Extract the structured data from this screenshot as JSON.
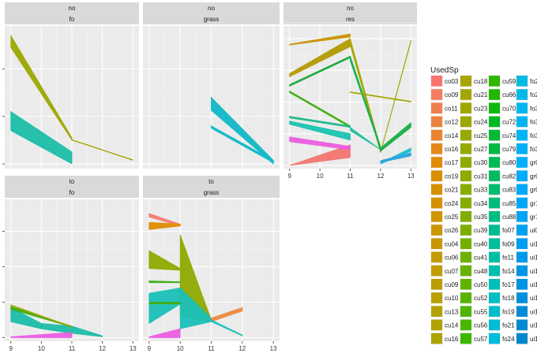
{
  "chart_data": {
    "type": "area",
    "facet_rows_label": [
      "no",
      "to"
    ],
    "facets": [
      {
        "top": "no",
        "bottom": "fo",
        "series": [
          {
            "name": "cu16",
            "color": "#9CA800",
            "x": [
              9,
              11
            ],
            "low": [
              4.9,
              1.0
            ],
            "high": [
              5.4,
              1.1
            ]
          },
          {
            "name": "cu40",
            "color": "#A3A500",
            "x": [
              11,
              13
            ],
            "low": [
              1.0,
              0.15
            ],
            "high": [
              1.02,
              0.17
            ]
          },
          {
            "name": "fo11",
            "color": "#1BBEA8",
            "x": [
              9,
              11
            ],
            "low": [
              1.4,
              0.0
            ],
            "high": [
              2.2,
              0.5
            ]
          }
        ]
      },
      {
        "top": "no",
        "bottom": "grass",
        "series": [
          {
            "name": "gr01",
            "color": "#12B8C8",
            "x": [
              11,
              13
            ],
            "low": [
              2.25,
              0.0
            ],
            "high": [
              2.8,
              0.15
            ]
          },
          {
            "name": "gr03",
            "color": "#12B8C8",
            "x": [
              11,
              13
            ],
            "low": [
              1.5,
              0.05
            ],
            "high": [
              1.6,
              0.15
            ]
          }
        ]
      },
      {
        "top": "no",
        "bottom": "res",
        "series": [
          {
            "name": "co03",
            "color": "#F2766F",
            "x": [
              9,
              11
            ],
            "low": [
              0.0,
              0.5
            ],
            "high": [
              0.0,
              1.3
            ]
          },
          {
            "name": "cu18",
            "color": "#C79400",
            "x": [
              9,
              11
            ],
            "low": [
              7.6,
              8.1
            ],
            "high": [
              7.65,
              8.3
            ]
          },
          {
            "name": "cu33",
            "color": "#B39A00",
            "x": [
              9,
              11
            ],
            "low": [
              5.6,
              7.5
            ],
            "high": [
              5.8,
              8.0
            ]
          },
          {
            "name": "cu35",
            "color": "#A3A500",
            "x": [
              11,
              12
            ],
            "low": [
              7.6,
              0.8
            ],
            "high": [
              8.0,
              1.1
            ]
          },
          {
            "name": "cu35",
            "color": "#A3A500",
            "x": [
              12,
              13
            ],
            "low": [
              0.8,
              7.8
            ],
            "high": [
              0.85,
              7.9
            ]
          },
          {
            "name": "cu59",
            "color": "#3EAE11",
            "x": [
              9,
              11
            ],
            "low": [
              4.6,
              2.4
            ],
            "high": [
              4.7,
              2.5
            ]
          },
          {
            "name": "cu66",
            "color": "#18A93A",
            "x": [
              9,
              11
            ],
            "low": [
              5.0,
              6.8
            ],
            "high": [
              5.1,
              6.9
            ]
          },
          {
            "name": "cu70",
            "color": "#0DB04F",
            "x": [
              11,
              12
            ],
            "low": [
              6.6,
              1.0
            ],
            "high": [
              6.9,
              1.2
            ]
          },
          {
            "name": "cu74",
            "color": "#18AE44",
            "x": [
              12,
              13
            ],
            "low": [
              0.9,
              2.4
            ],
            "high": [
              1.1,
              2.7
            ]
          },
          {
            "name": "cu80",
            "color": "#1FB88C",
            "x": [
              9,
              11
            ],
            "low": [
              3.0,
              2.4
            ],
            "high": [
              3.1,
              2.5
            ]
          },
          {
            "name": "fo07",
            "color": "#1AC4B0",
            "x": [
              9,
              11
            ],
            "low": [
              2.6,
              1.6
            ],
            "high": [
              2.8,
              2.0
            ]
          },
          {
            "name": "fo14",
            "color": "#1FC1A0",
            "x": [
              11,
              12
            ],
            "low": [
              2.2,
              1.0
            ],
            "high": [
              2.4,
              1.0
            ]
          },
          {
            "name": "gr01",
            "color": "#18BFCB",
            "x": [
              12,
              13
            ],
            "low": [
              0.1,
              0.9
            ],
            "high": [
              0.15,
              1.1
            ]
          },
          {
            "name": "ui04",
            "color": "#2CA2E0",
            "x": [
              12,
              13
            ],
            "low": [
              0.2,
              0.6
            ],
            "high": [
              0.3,
              0.8
            ]
          },
          {
            "name": "ui10",
            "color": "#EB5EE0",
            "x": [
              9,
              11
            ],
            "low": [
              1.5,
              1.0
            ],
            "high": [
              1.8,
              1.2
            ]
          },
          {
            "name": "cu41",
            "color": "#A3A500",
            "x": [
              11,
              13
            ],
            "low": [
              4.6,
              4.0
            ],
            "high": [
              4.65,
              4.05
            ]
          }
        ]
      },
      {
        "top": "to",
        "bottom": "fo",
        "series": [
          {
            "name": "fo11",
            "color": "#1BBEA8",
            "x": [
              9,
              10
            ],
            "low": [
              0.9,
              0.5
            ],
            "high": [
              1.7,
              0.8
            ]
          },
          {
            "name": "fo11",
            "color": "#1BBEA8",
            "x": [
              10,
              11
            ],
            "low": [
              0.5,
              0.25
            ],
            "high": [
              0.8,
              0.65
            ]
          },
          {
            "name": "fo11",
            "color": "#1BBEA8",
            "x": [
              11,
              12
            ],
            "low": [
              0.25,
              0.05
            ],
            "high": [
              0.65,
              0.1
            ]
          },
          {
            "name": "cu59",
            "color": "#3EAE11",
            "x": [
              9,
              11
            ],
            "low": [
              1.6,
              0.6
            ],
            "high": [
              1.75,
              0.65
            ]
          },
          {
            "name": "ui10",
            "color": "#EB5EE0",
            "x": [
              9,
              11
            ],
            "low": [
              0.0,
              0.0
            ],
            "high": [
              0.05,
              0.3
            ]
          },
          {
            "name": "cu48",
            "color": "#A3A500",
            "x": [
              9,
              11
            ],
            "low": [
              1.8,
              0.6
            ],
            "high": [
              1.85,
              0.62
            ]
          }
        ]
      },
      {
        "top": "to",
        "bottom": "grass",
        "series": [
          {
            "name": "co14",
            "color": "#F0806E",
            "x": [
              9,
              10
            ],
            "low": [
              6.8,
              6.3
            ],
            "high": [
              7.0,
              6.4
            ]
          },
          {
            "name": "co24",
            "color": "#E08B00",
            "x": [
              9,
              10
            ],
            "low": [
              6.1,
              6.3
            ],
            "high": [
              6.5,
              6.4
            ]
          },
          {
            "name": "cu50",
            "color": "#8FAA00",
            "x": [
              9,
              10
            ],
            "low": [
              3.9,
              3.8
            ],
            "high": [
              4.9,
              3.9
            ]
          },
          {
            "name": "cu52",
            "color": "#8FAA00",
            "x": [
              10,
              11
            ],
            "low": [
              1.2,
              0.9
            ],
            "high": [
              5.8,
              1.0
            ]
          },
          {
            "name": "cu55",
            "color": "#3EAE11",
            "x": [
              9,
              10
            ],
            "low": [
              3.1,
              3.1
            ],
            "high": [
              3.2,
              3.15
            ]
          },
          {
            "name": "fo21",
            "color": "#1AC0B8",
            "x": [
              9,
              10
            ],
            "low": [
              0.8,
              1.9
            ],
            "high": [
              2.5,
              2.8
            ]
          },
          {
            "name": "fo24",
            "color": "#1AC0B8",
            "x": [
              10,
              11
            ],
            "low": [
              0.5,
              0.9
            ],
            "high": [
              2.8,
              1.1
            ]
          },
          {
            "name": "cu56",
            "color": "#3EAE11",
            "x": [
              9,
              10
            ],
            "low": [
              1.9,
              1.9
            ],
            "high": [
              2.0,
              2.0
            ]
          },
          {
            "name": "co25",
            "color": "#EE8A40",
            "x": [
              11,
              12
            ],
            "low": [
              0.9,
              1.5
            ],
            "high": [
              1.1,
              1.7
            ]
          },
          {
            "name": "ui10",
            "color": "#EB5EE0",
            "x": [
              9,
              10
            ],
            "low": [
              0.0,
              0.0
            ],
            "high": [
              0.05,
              0.5
            ]
          },
          {
            "name": "fo17",
            "color": "#1AC0B8",
            "x": [
              11,
              12
            ],
            "low": [
              0.9,
              0.1
            ],
            "high": [
              1.0,
              0.15
            ]
          }
        ]
      }
    ],
    "x_ticks": [
      9,
      10,
      11,
      12,
      13
    ],
    "xlim": [
      8.8,
      13.2
    ],
    "ylim_row1": [
      -0.2,
      5.8
    ],
    "ylim_row1_res": [
      -0.2,
      8.8
    ],
    "ylim_row2": [
      -0.2,
      7.8
    ],
    "legend": {
      "title": "UsedSp",
      "position": "right",
      "columns": [
        [
          {
            "label": "co03",
            "color": "#F8766D"
          },
          {
            "label": "co09",
            "color": "#F47B5E"
          },
          {
            "label": "co11",
            "color": "#F07E50"
          },
          {
            "label": "co12",
            "color": "#EC8240"
          },
          {
            "label": "co14",
            "color": "#E8852E"
          },
          {
            "label": "co16",
            "color": "#E4881A"
          },
          {
            "label": "co17",
            "color": "#E08B00"
          },
          {
            "label": "co19",
            "color": "#DC8E00"
          },
          {
            "label": "co21",
            "color": "#D89000"
          },
          {
            "label": "co24",
            "color": "#D49200"
          },
          {
            "label": "co25",
            "color": "#D09400"
          },
          {
            "label": "co26",
            "color": "#CC9600"
          },
          {
            "label": "cu04",
            "color": "#C89800"
          },
          {
            "label": "cu06",
            "color": "#C49A00"
          },
          {
            "label": "cu07",
            "color": "#C09C00"
          },
          {
            "label": "cu09",
            "color": "#BC9D00"
          },
          {
            "label": "cu10",
            "color": "#B89F00"
          },
          {
            "label": "cu13",
            "color": "#B4A000"
          },
          {
            "label": "cu14",
            "color": "#B0A200"
          },
          {
            "label": "cu16",
            "color": "#ACA300"
          }
        ],
        [
          {
            "label": "cu18",
            "color": "#A8A400"
          },
          {
            "label": "cu21",
            "color": "#A4A500"
          },
          {
            "label": "cu23",
            "color": "#A0A600"
          },
          {
            "label": "cu24",
            "color": "#9CA700"
          },
          {
            "label": "cu25",
            "color": "#98A800"
          },
          {
            "label": "cu27",
            "color": "#94A900"
          },
          {
            "label": "cu30",
            "color": "#90AA00"
          },
          {
            "label": "cu31",
            "color": "#8CAB00"
          },
          {
            "label": "cu33",
            "color": "#88AC00"
          },
          {
            "label": "cu34",
            "color": "#84AD00"
          },
          {
            "label": "cu35",
            "color": "#7FAE00"
          },
          {
            "label": "cu39",
            "color": "#7AAF00"
          },
          {
            "label": "cu40",
            "color": "#74B000"
          },
          {
            "label": "cu41",
            "color": "#6EB100"
          },
          {
            "label": "cu48",
            "color": "#67B200"
          },
          {
            "label": "cu50",
            "color": "#60B300"
          },
          {
            "label": "cu52",
            "color": "#58B400"
          },
          {
            "label": "cu55",
            "color": "#50B500"
          },
          {
            "label": "cu56",
            "color": "#46B600"
          },
          {
            "label": "cu57",
            "color": "#3BB700"
          }
        ],
        [
          {
            "label": "cu59",
            "color": "#2FB700"
          },
          {
            "label": "cu66",
            "color": "#20B800"
          },
          {
            "label": "cu70",
            "color": "#0BB90A"
          },
          {
            "label": "cu72",
            "color": "#00B922"
          },
          {
            "label": "cu74",
            "color": "#00BA34"
          },
          {
            "label": "cu79",
            "color": "#00BA44"
          },
          {
            "label": "cu80",
            "color": "#00BB53"
          },
          {
            "label": "cu82",
            "color": "#00BB61"
          },
          {
            "label": "cu83",
            "color": "#00BC6E"
          },
          {
            "label": "cu85",
            "color": "#00BC7A"
          },
          {
            "label": "cu88",
            "color": "#00BD86"
          },
          {
            "label": "fo07",
            "color": "#00BD91"
          },
          {
            "label": "fo09",
            "color": "#00BE9C"
          },
          {
            "label": "fo11",
            "color": "#00BEA6"
          },
          {
            "label": "fo14",
            "color": "#00BEB0"
          },
          {
            "label": "fo17",
            "color": "#00BEBA"
          },
          {
            "label": "fo18",
            "color": "#00BEC3"
          },
          {
            "label": "fo19",
            "color": "#00BDCC"
          },
          {
            "label": "fo21",
            "color": "#00BCD4"
          },
          {
            "label": "fo24",
            "color": "#00BBDC"
          }
        ],
        [
          {
            "label": "fo2",
            "color": "#00BAE3"
          },
          {
            "label": "fo2",
            "color": "#00B9E9"
          },
          {
            "label": "fo3",
            "color": "#00B7EE"
          },
          {
            "label": "fo3",
            "color": "#00B5F2"
          },
          {
            "label": "fo3",
            "color": "#00B3F5"
          },
          {
            "label": "fo3",
            "color": "#00B1F7"
          },
          {
            "label": "gr0",
            "color": "#00AFF8"
          },
          {
            "label": "gr0",
            "color": "#00ACF8"
          },
          {
            "label": "gr0",
            "color": "#00A9F7"
          },
          {
            "label": "gr1",
            "color": "#00A6F6"
          },
          {
            "label": "gr1",
            "color": "#00A3F4"
          },
          {
            "label": "ui0",
            "color": "#00A0F1"
          },
          {
            "label": "ui1",
            "color": "#009DEE"
          },
          {
            "label": "ui1",
            "color": "#0099EA"
          },
          {
            "label": "ui1",
            "color": "#0096E5"
          },
          {
            "label": "ui1",
            "color": "#0093E0"
          },
          {
            "label": "ui1",
            "color": "#0090DB"
          },
          {
            "label": "ui1",
            "color": "#008DD6"
          },
          {
            "label": "ui1",
            "color": "#008AD1"
          },
          {
            "label": "ui1",
            "color": "#0087CC"
          }
        ]
      ]
    }
  }
}
